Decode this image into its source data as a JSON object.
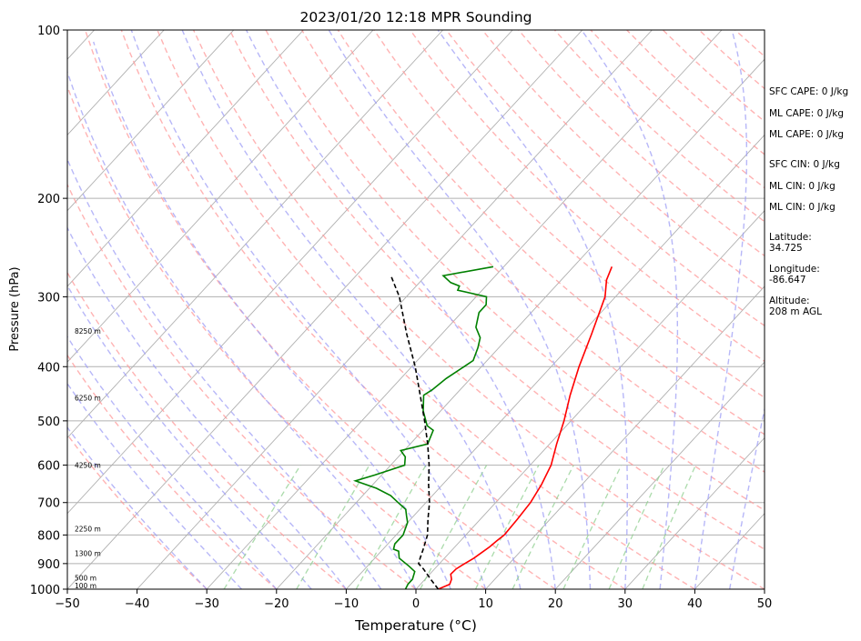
{
  "chart_data": {
    "type": "line",
    "title": "2023/01/20 12:18 MPR Sounding",
    "xlabel": "Temperature (°C)",
    "ylabel": "Pressure (hPa)",
    "xlim": [
      -50,
      50
    ],
    "ylim": [
      1000,
      100
    ],
    "y_scale": "log",
    "grid": true,
    "x_ticks": [
      -50,
      -40,
      -30,
      -20,
      -10,
      0,
      10,
      20,
      30,
      40,
      50
    ],
    "x_tick_labels": [
      "−50",
      "−40",
      "−30",
      "−20",
      "−10",
      "0",
      "10",
      "20",
      "30",
      "40",
      "50"
    ],
    "y_ticks": [
      1000,
      900,
      800,
      700,
      600,
      500,
      400,
      300,
      200,
      100
    ],
    "y_tick_labels": [
      "1000",
      "900",
      "800",
      "700",
      "600",
      "500",
      "400",
      "300",
      "200",
      "100"
    ],
    "altitude_labels": [
      {
        "pressure": 1000,
        "text": "100 m"
      },
      {
        "pressure": 955,
        "text": "500 m"
      },
      {
        "pressure": 862,
        "text": "1300 m"
      },
      {
        "pressure": 780,
        "text": "2250 m"
      },
      {
        "pressure": 600,
        "text": "4250 m"
      },
      {
        "pressure": 455,
        "text": "6250 m"
      },
      {
        "pressure": 345,
        "text": "8250 m"
      }
    ],
    "series": [
      {
        "role": "temperature",
        "color": "#ff0000",
        "points": [
          [
            3.2,
            1000
          ],
          [
            4.2,
            980
          ],
          [
            3.8,
            960
          ],
          [
            3.0,
            940
          ],
          [
            3.1,
            920
          ],
          [
            3.6,
            900
          ],
          [
            4.2,
            880
          ],
          [
            4.6,
            860
          ],
          [
            5.0,
            840
          ],
          [
            5.2,
            820
          ],
          [
            5.5,
            800
          ],
          [
            5.3,
            750
          ],
          [
            5.0,
            700
          ],
          [
            4.2,
            650
          ],
          [
            3.0,
            600
          ],
          [
            1.0,
            550
          ],
          [
            -1.0,
            500
          ],
          [
            -3.5,
            450
          ],
          [
            -6.0,
            400
          ],
          [
            -8.5,
            350
          ],
          [
            -11.5,
            300
          ],
          [
            -13.5,
            280
          ],
          [
            -14.5,
            265
          ]
        ]
      },
      {
        "role": "dewpoint",
        "color": "#008000",
        "points": [
          [
            -1.5,
            1000
          ],
          [
            -1.8,
            980
          ],
          [
            -1.8,
            960
          ],
          [
            -2.5,
            930
          ],
          [
            -4.0,
            910
          ],
          [
            -6.5,
            880
          ],
          [
            -7.5,
            855
          ],
          [
            -8.5,
            848
          ],
          [
            -9.0,
            830
          ],
          [
            -9.0,
            800
          ],
          [
            -9.5,
            780
          ],
          [
            -10.0,
            760
          ],
          [
            -11.0,
            740
          ],
          [
            -12.0,
            720
          ],
          [
            -14.0,
            700
          ],
          [
            -16.0,
            680
          ],
          [
            -19.0,
            660
          ],
          [
            -22.0,
            645
          ],
          [
            -23.0,
            640
          ],
          [
            -21.0,
            625
          ],
          [
            -18.0,
            600
          ],
          [
            -19.0,
            580
          ],
          [
            -20.5,
            565
          ],
          [
            -17.5,
            550
          ],
          [
            -18.5,
            520
          ],
          [
            -20.0,
            510
          ],
          [
            -22.5,
            480
          ],
          [
            -24.5,
            450
          ],
          [
            -24.0,
            440
          ],
          [
            -23.5,
            420
          ],
          [
            -22.5,
            400
          ],
          [
            -22.0,
            390
          ],
          [
            -23.0,
            370
          ],
          [
            -24.0,
            355
          ],
          [
            -26.0,
            340
          ],
          [
            -27.5,
            320
          ],
          [
            -27.5,
            310
          ],
          [
            -28.5,
            300
          ],
          [
            -33.5,
            292
          ],
          [
            -33.8,
            287
          ],
          [
            -35.5,
            283
          ],
          [
            -37.5,
            275
          ],
          [
            -31.5,
            265
          ]
        ]
      },
      {
        "role": "parcel",
        "color": "#000000",
        "points": [
          [
            3.2,
            1000
          ],
          [
            0.8,
            960
          ],
          [
            -1.6,
            920
          ],
          [
            -3.0,
            900
          ],
          [
            -3.5,
            880
          ],
          [
            -4.2,
            850
          ],
          [
            -5.5,
            800
          ],
          [
            -7.5,
            750
          ],
          [
            -9.5,
            700
          ],
          [
            -12.0,
            650
          ],
          [
            -14.5,
            600
          ],
          [
            -17.5,
            550
          ],
          [
            -21.0,
            500
          ],
          [
            -25.0,
            450
          ],
          [
            -29.5,
            400
          ],
          [
            -35.0,
            350
          ],
          [
            -41.0,
            300
          ],
          [
            -45.0,
            275
          ]
        ]
      }
    ],
    "stats": [
      "SFC CAPE: 0 J/kg",
      "ML CAPE: 0 J/kg",
      "ML CAPE: 0 J/kg",
      "SFC CIN: 0 J/kg",
      "ML CIN: 0 J/kg",
      "ML CIN: 0 J/kg"
    ],
    "site": {
      "latitude_label": "Latitude:",
      "latitude": "34.725",
      "longitude_label": "Longitude:",
      "longitude": "-86.647",
      "altitude_label": "Altitude:",
      "altitude": "208 m AGL"
    },
    "colors": {
      "isotherm": "#b0b0b0",
      "dry_adiabat": "#ff9999",
      "moist_adiabat": "#9f9ff5",
      "mixing_ratio": "#8fcf8f",
      "isobar": "#b0b0b0"
    }
  }
}
